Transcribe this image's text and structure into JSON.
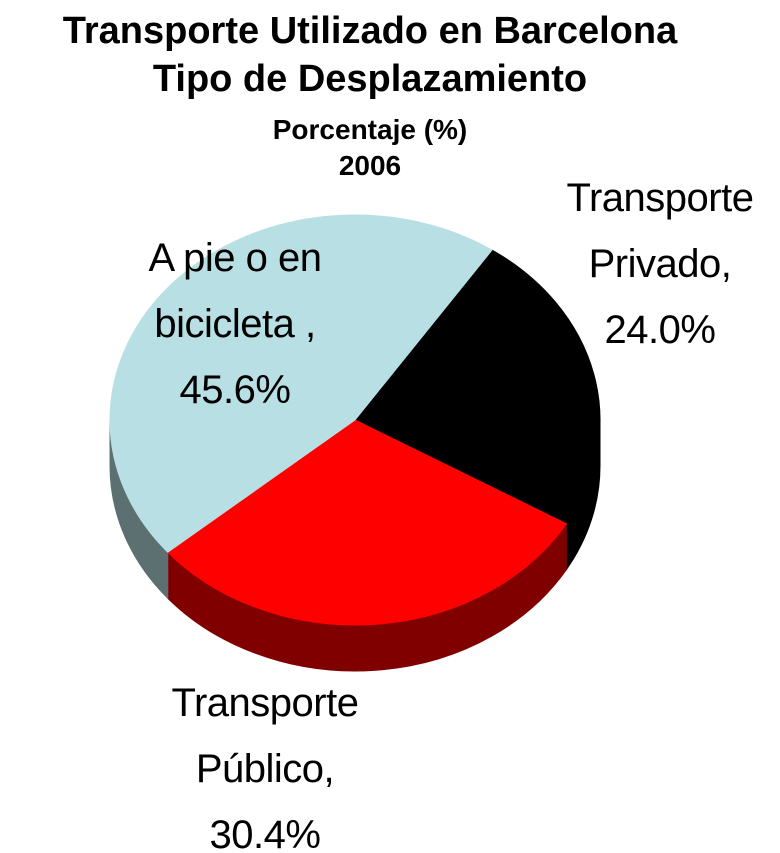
{
  "chart_data": {
    "type": "pie",
    "title": "Transporte Utilizado en Barcelona",
    "subtitle": "Tipo de Desplazamiento",
    "unit_label": "Porcentaje  (%)",
    "year": "2006",
    "categories": [
      "Transporte Privado,",
      "Transporte Público,",
      "A pie o en bicicleta ,"
    ],
    "values": [
      24.0,
      30.4,
      45.6
    ],
    "value_labels": [
      "24.0%",
      "30.4%",
      "45.6%"
    ],
    "colors": [
      "#000000",
      "#ff0000",
      "#b8dfe4"
    ]
  }
}
